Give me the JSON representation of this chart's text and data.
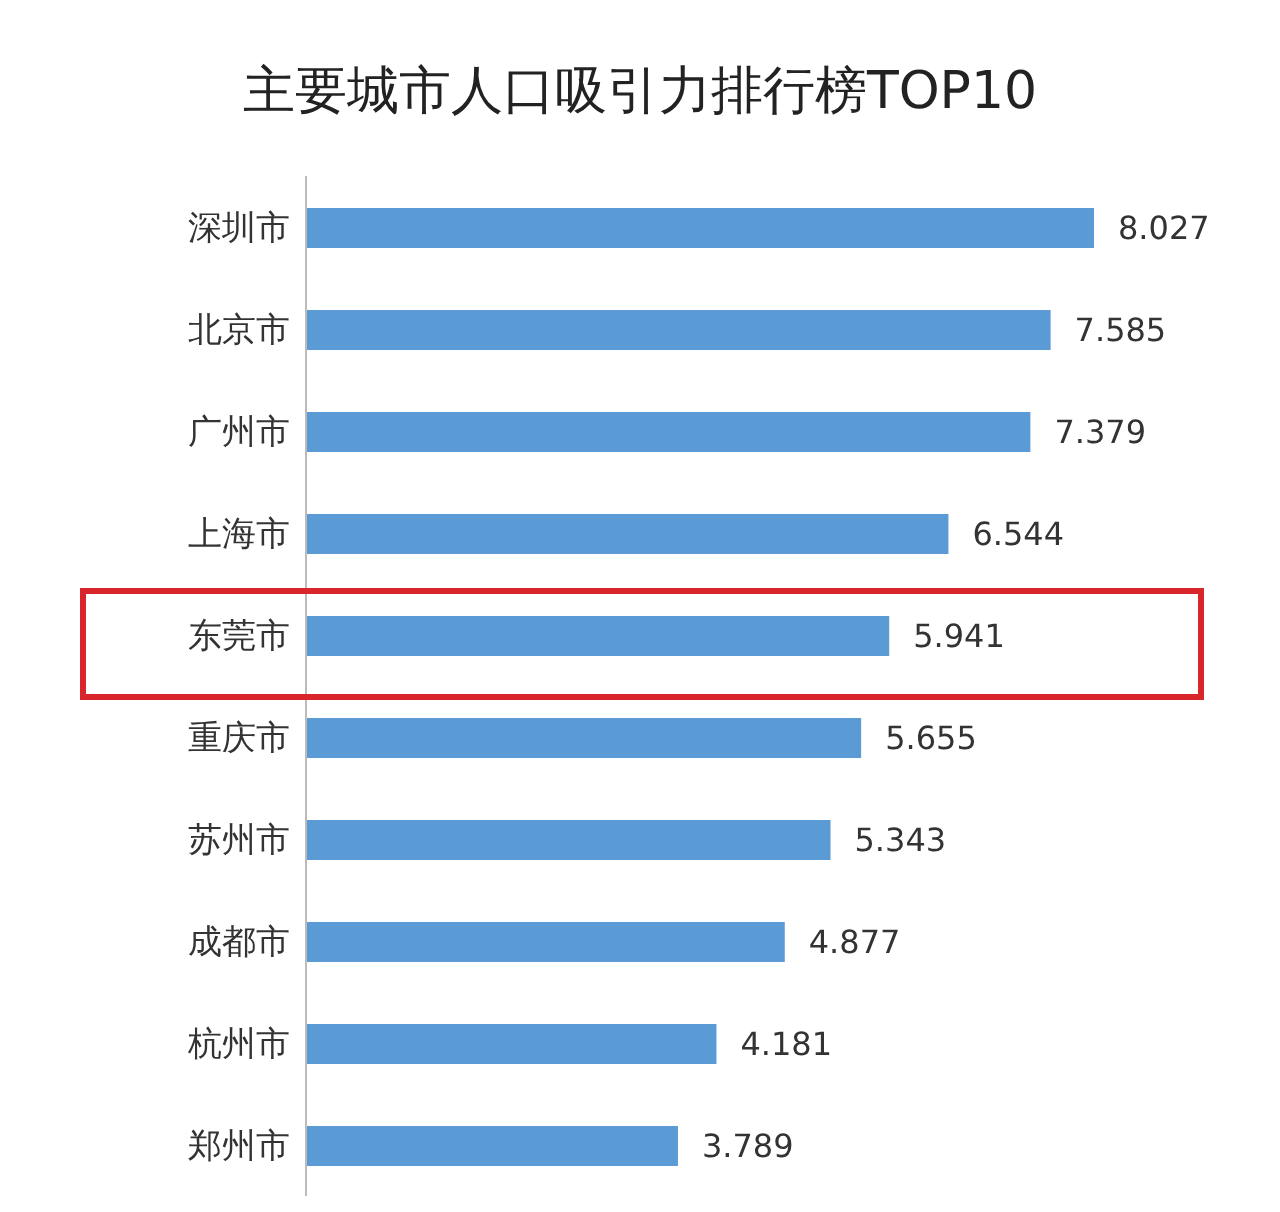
{
  "chart_data": {
    "type": "bar",
    "orientation": "horizontal",
    "title": "主要城市人口吸引力排行榜TOP10",
    "categories": [
      "深圳市",
      "北京市",
      "广州市",
      "上海市",
      "东莞市",
      "重庆市",
      "苏州市",
      "成都市",
      "杭州市",
      "郑州市"
    ],
    "values": [
      8.027,
      7.585,
      7.379,
      6.544,
      5.941,
      5.655,
      5.343,
      4.877,
      4.181,
      3.789
    ],
    "color": "#5b9bd5",
    "data_labels": true,
    "grid": false,
    "legend": false
  }
}
